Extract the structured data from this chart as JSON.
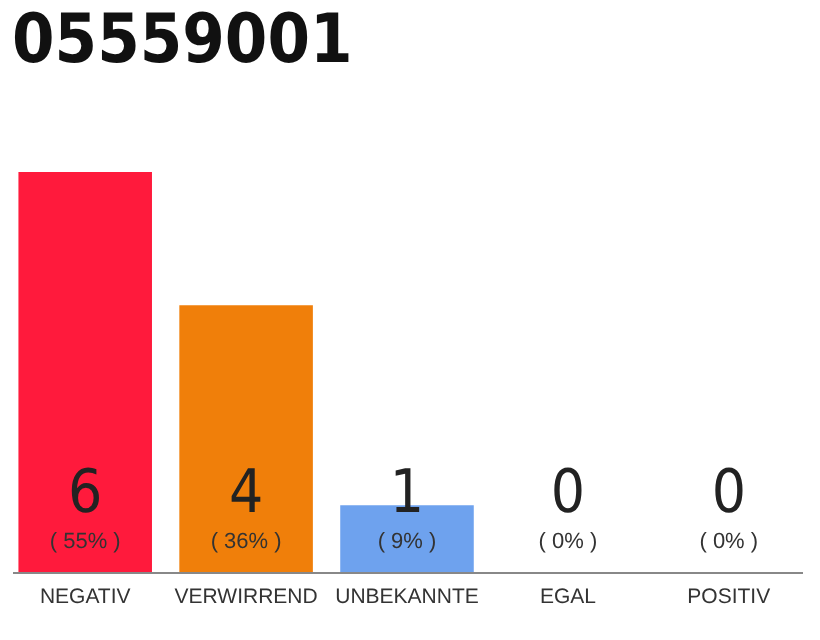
{
  "chart_data": {
    "type": "bar",
    "title": "05559001",
    "categories": [
      "NEGATIV",
      "VERWIRREND",
      "UNBEKANNTE",
      "EGAL",
      "POSITIV"
    ],
    "values": [
      6,
      4,
      1,
      0,
      0
    ],
    "colors": [
      "#ff1a3c",
      "#f07f0a",
      "#6ea2ee",
      "#dddddd",
      "#dddddd"
    ],
    "data_labels": true,
    "annotations": [
      "( 55% )",
      "( 36% )",
      "( 9% )",
      "( 0% )",
      "( 0% )"
    ]
  }
}
